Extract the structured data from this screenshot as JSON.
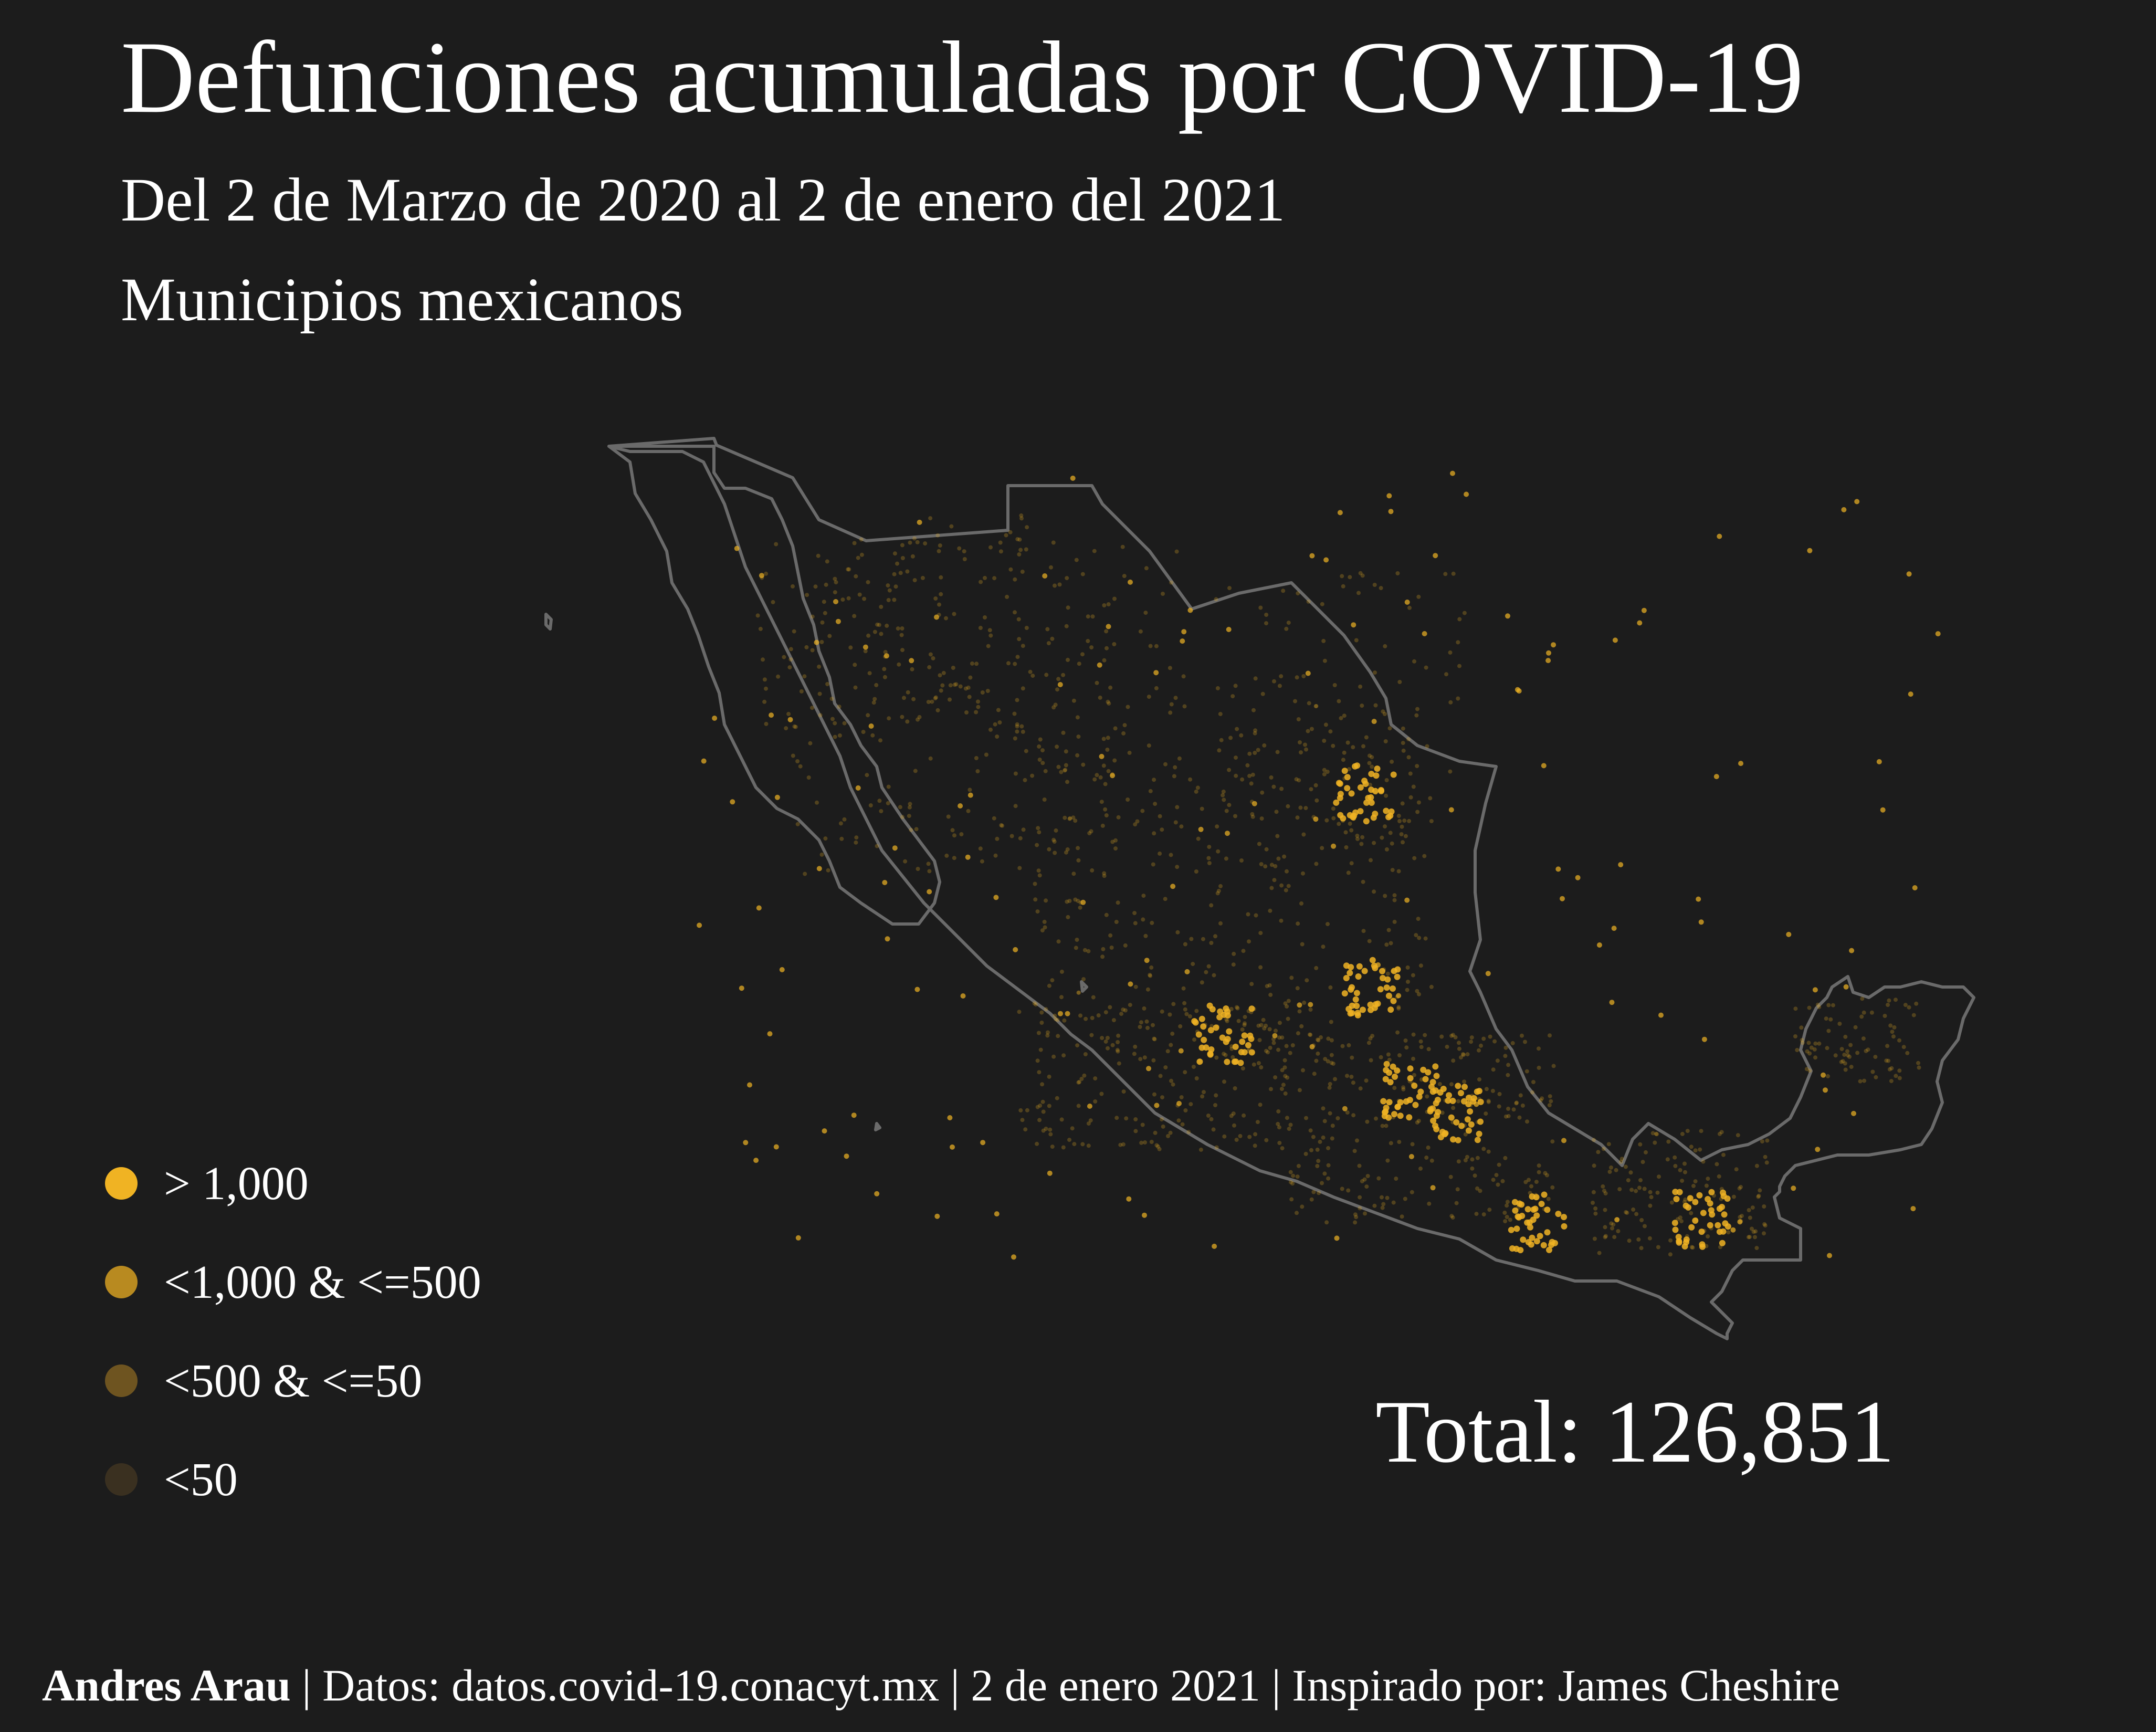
{
  "title": "Defunciones acumuladas por COVID-19",
  "subtitle": "Del 2 de Marzo de 2020 al 2 de enero del 2021",
  "subtitle2": "Municipios mexicanos",
  "total": "Total: 126,851",
  "legend": [
    {
      "label": "> 1,000",
      "color": "#f0b323"
    },
    {
      "label": "<1,000 & <=500",
      "color": "#b88a20"
    },
    {
      "label": "<500 & <=50",
      "color": "#6e5420"
    },
    {
      "label": "<50",
      "color": "#3a3020"
    }
  ],
  "footer": {
    "author": "Andres Arau",
    "rest": " | Datos: datos.covid-19.conacyt.mx | 2 de enero 2021 | Inspirado por: James Cheshire"
  },
  "colors": {
    "background": "#1c1c1c",
    "outline": "#6a6a6a",
    "dot_high": "#f0b323"
  }
}
